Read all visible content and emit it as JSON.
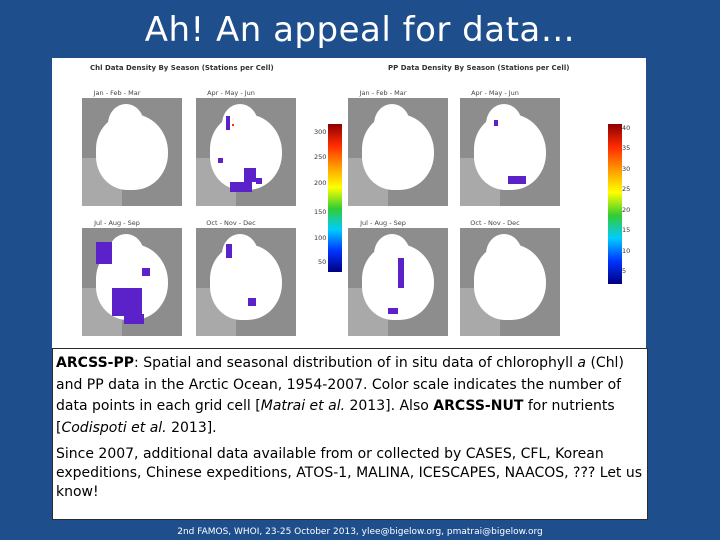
{
  "slide": {
    "title": "Ah! An appeal for data…",
    "footer": "2nd FAMOS, WHOI, 23-25 October 2013, ylee@bigelow.org, pmatrai@bigelow.org"
  },
  "figure": {
    "left_title": "Chl Data Density By Season (Stations per Cell)",
    "right_title": "PP Data Density By Season (Stations per Cell)",
    "season_labels": [
      "Jan - Feb - Mar",
      "Apr - May - Jun",
      "Jul - Aug - Sep",
      "Oct - Nov - Dec"
    ],
    "chl_colorbar_ticks": [
      "300",
      "250",
      "200",
      "150",
      "100",
      "50"
    ],
    "pp_colorbar_ticks": [
      "40",
      "35",
      "30",
      "25",
      "20",
      "15",
      "10",
      "5"
    ],
    "colors": {
      "colorbar_top": "#8b0000",
      "colorbar_red": "#ff2a00",
      "colorbar_orange": "#ff9900",
      "colorbar_yellow": "#ffff00",
      "colorbar_green": "#33cc33",
      "colorbar_cyan": "#00ccff",
      "colorbar_blue": "#0033ff",
      "colorbar_bottom": "#000080",
      "data_dots": "#5a22c8"
    }
  },
  "caption": {
    "p1_term": "ARCSS-PP",
    "p1_a": ": Spatial and seasonal distribution of in situ data of chlorophyll ",
    "p1_italic_a": "a",
    "p1_b": " (Chl) and PP data in the Arctic Ocean, 1954-2007. Color scale indicates the number of data points in each grid cell [",
    "cite1_author": "Matrai et al.",
    "cite1_year": " 2013]. Also ",
    "p1_term2": "ARCSS-NUT",
    "p1_c": " for nutrients [",
    "cite2_author": "Codispoti et al.",
    "cite2_year": " 2013].",
    "p2": "Since 2007, additional data available from or collected by CASES, CFL, Korean expeditions, Chinese expeditions, ATOS-1, MALINA, ICESCAPES, NAACOS, ??? Let us know!"
  }
}
